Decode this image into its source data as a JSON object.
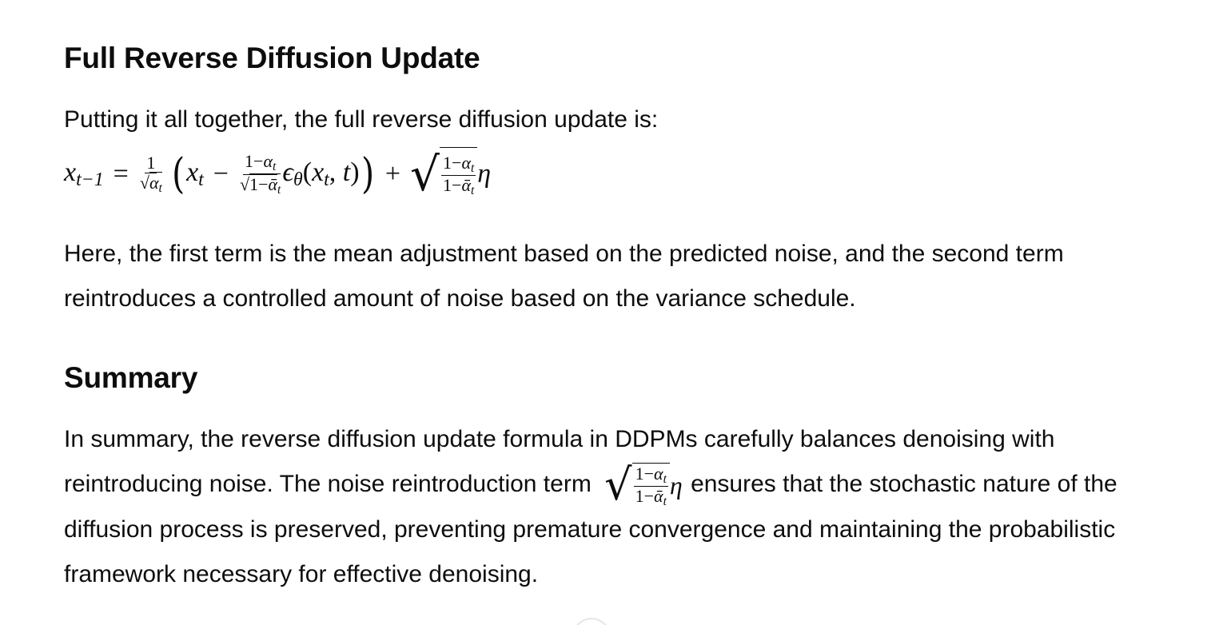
{
  "sections": [
    {
      "heading": "Full Reverse Diffusion Update",
      "intro": "Putting it all together, the full reverse diffusion update is:",
      "paragraph": "Here, the first term is the mean adjustment based on the predicted noise, and the second term reintroduces a controlled amount of noise based on the variance schedule."
    },
    {
      "heading": "Summary",
      "paragraph_before_math": "In summary, the reverse diffusion update formula in DDPMs carefully balances denoising with reintroducing noise. The noise reintroduction term",
      "paragraph_after_math": "ensures that the stochastic nature of the diffusion process is preserved, preventing premature convergence and maintaining the probabilistic framework necessary for effective denoising."
    }
  ]
}
